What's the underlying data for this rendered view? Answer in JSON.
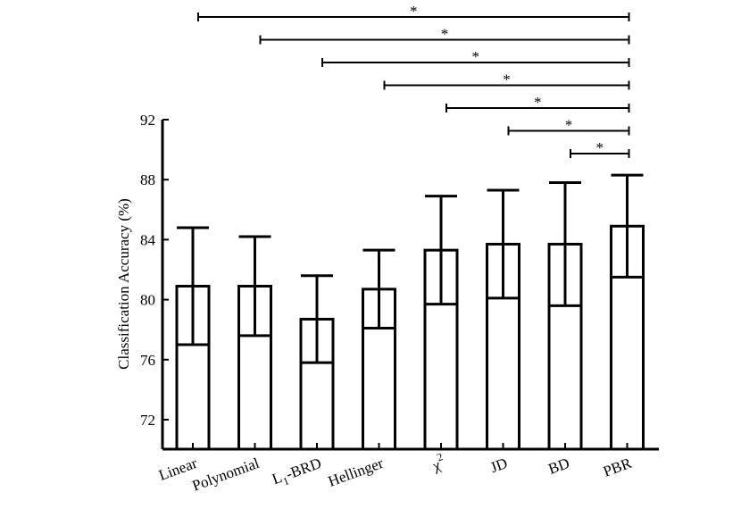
{
  "chart_data": {
    "type": "bar",
    "title": "",
    "xlabel": "",
    "ylabel": "Classification Accuracy (%)",
    "ylim": [
      70,
      92
    ],
    "yticks": [
      72,
      76,
      80,
      84,
      88,
      92
    ],
    "ytick_labels": [
      "72",
      "76",
      "80",
      "84",
      "88",
      "92"
    ],
    "categories": [
      "Linear",
      "Polynomial",
      "L1-BRD",
      "Hellinger",
      "χ2",
      "JD",
      "BD",
      "PBR"
    ],
    "category_labels": [
      {
        "main": "Linear",
        "sub": "",
        "sup": "",
        "tail": ""
      },
      {
        "main": "Polynomial",
        "sub": "",
        "sup": "",
        "tail": ""
      },
      {
        "main": "L",
        "sub": "1",
        "sup": "",
        "tail": "-BRD"
      },
      {
        "main": "Hellinger",
        "sub": "",
        "sup": "",
        "tail": ""
      },
      {
        "main": "χ",
        "sub": "",
        "sup": "2",
        "tail": ""
      },
      {
        "main": "JD",
        "sub": "",
        "sup": "",
        "tail": ""
      },
      {
        "main": "BD",
        "sub": "",
        "sup": "",
        "tail": ""
      },
      {
        "main": "PBR",
        "sub": "",
        "sup": "",
        "tail": ""
      }
    ],
    "values": [
      80.9,
      80.9,
      78.7,
      80.7,
      83.3,
      83.7,
      83.7,
      84.9
    ],
    "error_low": [
      77.0,
      77.6,
      75.8,
      78.1,
      79.7,
      80.1,
      79.6,
      81.5
    ],
    "error_high": [
      84.8,
      84.2,
      81.6,
      83.3,
      86.9,
      87.3,
      87.8,
      88.3
    ],
    "significance": [
      {
        "from": "Linear",
        "to": "PBR",
        "label": "*"
      },
      {
        "from": "Polynomial",
        "to": "PBR",
        "label": "*"
      },
      {
        "from": "L1-BRD",
        "to": "PBR",
        "label": "*"
      },
      {
        "from": "Hellinger",
        "to": "PBR",
        "label": "*"
      },
      {
        "from": "χ2",
        "to": "PBR",
        "label": "*"
      },
      {
        "from": "JD",
        "to": "PBR",
        "label": "*"
      },
      {
        "from": "BD",
        "to": "PBR",
        "label": "*"
      }
    ]
  }
}
